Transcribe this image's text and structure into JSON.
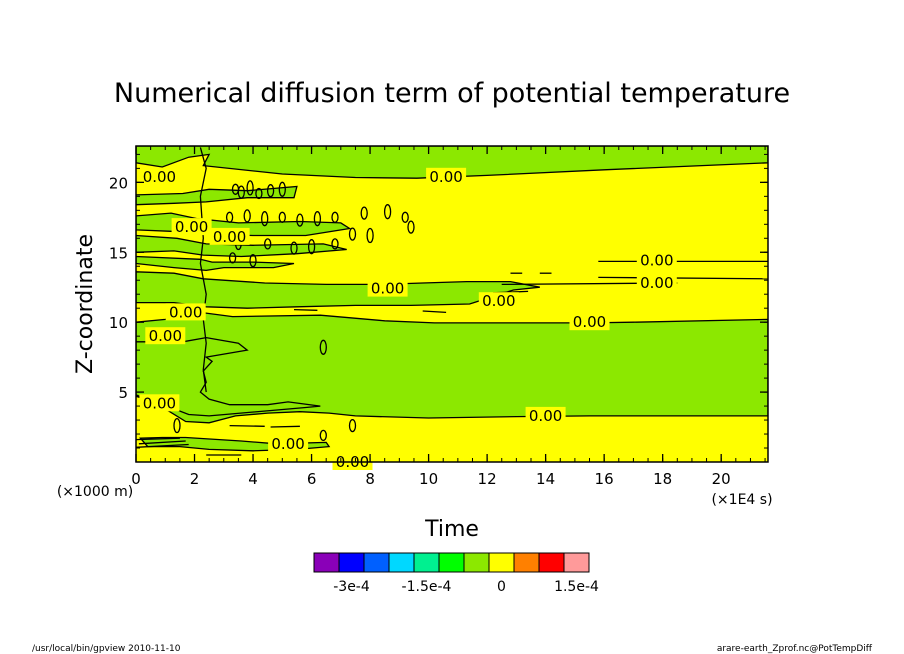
{
  "chart_data": {
    "type": "heatmap",
    "title": "Numerical diffusion term of potential temperature",
    "xlabel": "Time",
    "ylabel": "Z-coordinate",
    "x_scale_label": "(×1E4 s)",
    "y_scale_label": "(×1000 m)",
    "xlim": [
      0,
      21.6
    ],
    "ylim": [
      0,
      22.6
    ],
    "x_ticks": [
      "0",
      "2",
      "4",
      "6",
      "8",
      "10",
      "12",
      "14",
      "16",
      "18",
      "20"
    ],
    "x_tick_values": [
      0,
      2,
      4,
      6,
      8,
      10,
      12,
      14,
      16,
      18,
      20
    ],
    "y_ticks": [
      "5",
      "10",
      "15",
      "20"
    ],
    "y_tick_values": [
      5,
      10,
      15,
      20
    ],
    "contour_label": "0.00",
    "contour_labels": [
      {
        "x": 0.8,
        "y": 20.4
      },
      {
        "x": 10.6,
        "y": 20.4
      },
      {
        "x": 1.9,
        "y": 16.8
      },
      {
        "x": 3.2,
        "y": 16.1
      },
      {
        "x": 17.8,
        "y": 14.4
      },
      {
        "x": 17.8,
        "y": 12.8
      },
      {
        "x": 8.6,
        "y": 12.4
      },
      {
        "x": 12.4,
        "y": 11.5
      },
      {
        "x": 1.7,
        "y": 10.7
      },
      {
        "x": 15.5,
        "y": 10.0
      },
      {
        "x": 1.0,
        "y": 9.0
      },
      {
        "x": 0.8,
        "y": 4.2
      },
      {
        "x": 14.0,
        "y": 3.3
      },
      {
        "x": 5.2,
        "y": 1.3
      },
      {
        "x": 7.4,
        "y": 0.0
      }
    ],
    "regions": [
      {
        "fill": "positive",
        "desc": "background (yellow) ≈ 0 to 5e-5"
      },
      {
        "fill": "negative",
        "desc": "green bands ≈ -5e-5 to 0"
      }
    ],
    "colorbar": {
      "colors": [
        "#8a00b8",
        "#0000ff",
        "#0060ff",
        "#00d8ff",
        "#00f090",
        "#00ff00",
        "#8ce800",
        "#ffff00",
        "#ff8000",
        "#ff0000",
        "#ff9a9a"
      ],
      "tick_labels": [
        "-3e-4",
        "-1.5e-4",
        "0",
        "1.5e-4"
      ],
      "tick_values": [
        -0.0003,
        -0.00015,
        0,
        0.00015
      ],
      "min": -0.000375,
      "max": 0.000175
    },
    "colors": {
      "positive": "#ffff00",
      "negative": "#8ce800",
      "negative_strong": "#00ff00",
      "contour": "#000000"
    }
  },
  "footer": {
    "left": "/usr/local/bin/gpview   2010-11-10",
    "right": "arare-earth_Zprof.nc@PotTempDiff"
  }
}
